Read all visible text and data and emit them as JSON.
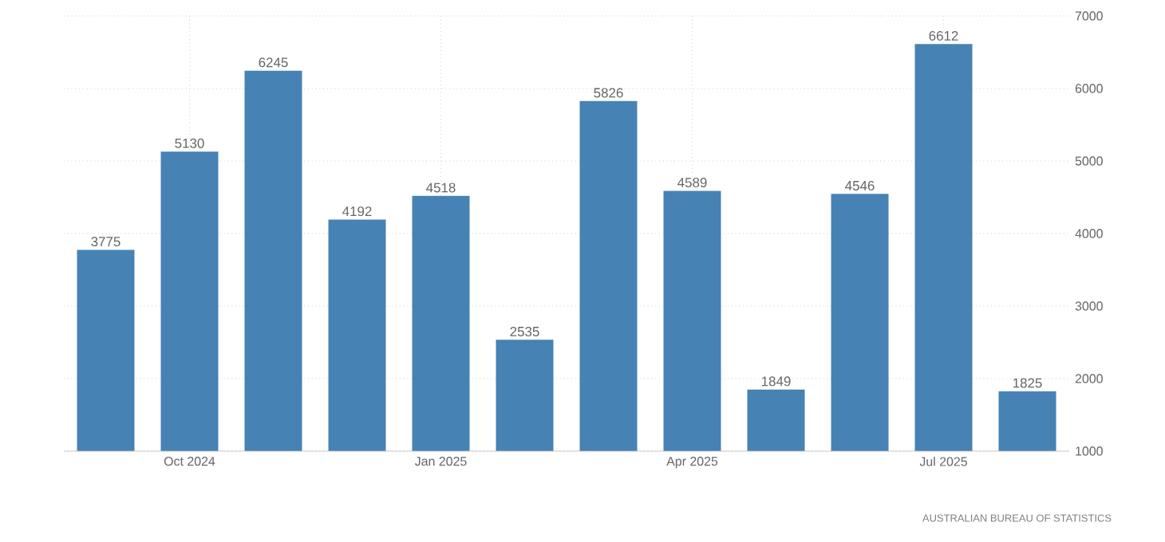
{
  "chart_data": {
    "type": "bar",
    "categories": [
      null,
      "Oct 2024",
      null,
      null,
      "Jan 2025",
      null,
      null,
      "Apr 2025",
      null,
      null,
      "Jul 2025",
      null
    ],
    "values": [
      3775,
      5130,
      6245,
      4192,
      4518,
      2535,
      5826,
      4589,
      1849,
      4546,
      6612,
      1825
    ],
    "color": "#4682b4",
    "ylim": [
      1000,
      7000
    ],
    "yticks": [
      1000,
      2000,
      3000,
      4000,
      5000,
      6000,
      7000
    ],
    "grid": true,
    "data_labels": true,
    "annotations": [
      "AUSTRALIAN BUREAU OF STATISTICS"
    ]
  }
}
